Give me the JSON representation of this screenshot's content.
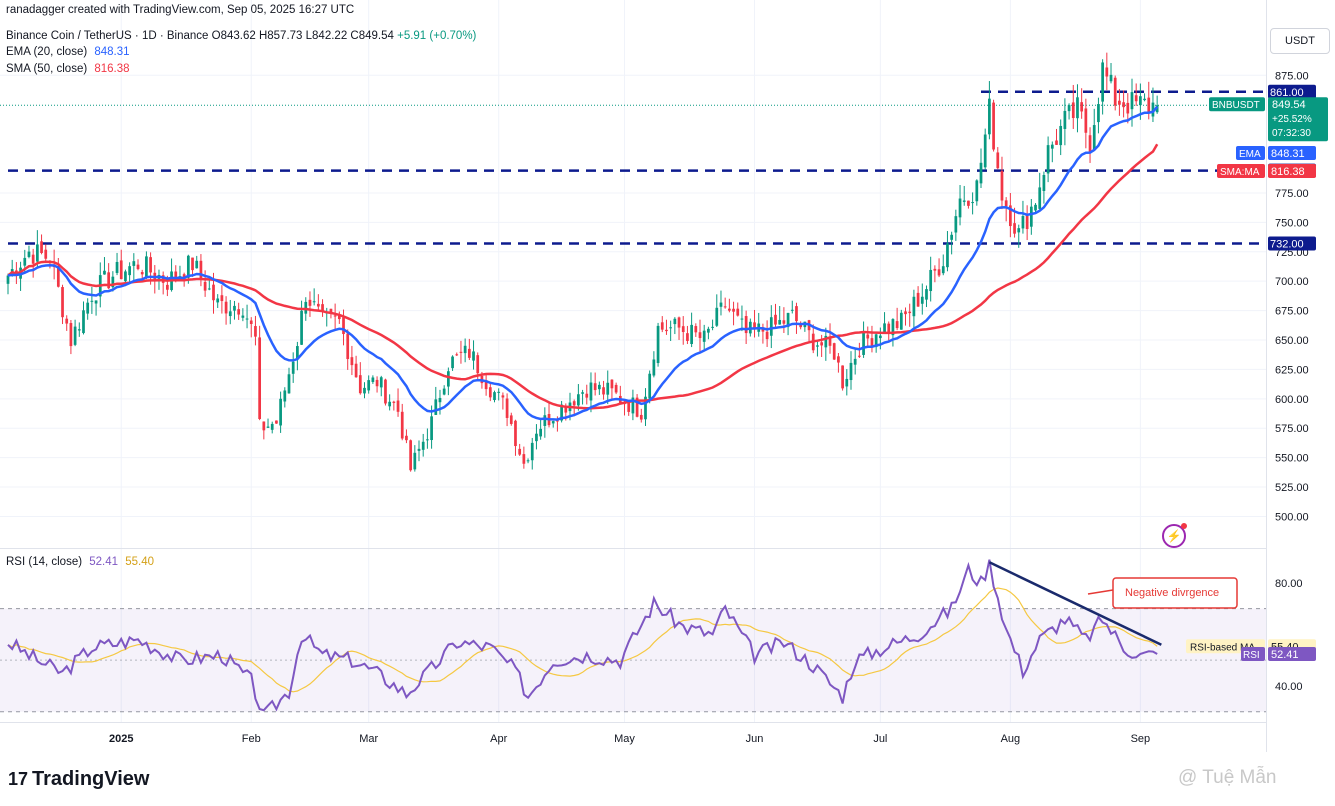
{
  "header": {
    "author_line": "ranadagger created with TradingView.com, Sep 05, 2025 16:27 UTC",
    "symbol_line": "Binance Coin / TetherUS · 1D · Binance",
    "open": "O843.62",
    "high": "H857.73",
    "low": "L842.22",
    "close": "C849.54",
    "change": "+5.91 (+0.70%)",
    "ema_label": "EMA (20, close)",
    "ema_value": "848.31",
    "sma_label": "SMA (50, close)",
    "sma_value": "816.38",
    "rsi_label": "RSI (14, close)",
    "rsi_value": "52.41",
    "rsi_ma_value": "55.40"
  },
  "currency_button": "USDT",
  "footer": {
    "logo": "TradingView",
    "watermark": "@ Tuệ Mẫn"
  },
  "colors": {
    "up": "#089981",
    "down": "#f23645",
    "ema": "#2962ff",
    "sma": "#f23645",
    "rsi": "#7e57c2",
    "rsi_ma": "#f5c842",
    "level": "#0d1b8e"
  },
  "chart_data": [
    {
      "type": "candlestick",
      "title": "Binance Coin / TetherUS · 1D · Binance",
      "ylim": [
        480,
        905
      ],
      "y_ticks": [
        "875.00",
        "775.00",
        "750.00",
        "725.00",
        "700.00",
        "675.00",
        "650.00",
        "625.00",
        "600.00",
        "575.00",
        "550.00",
        "525.00",
        "500.00"
      ],
      "x_ticks": [
        "2025",
        "Feb",
        "Mar",
        "Apr",
        "May",
        "Jun",
        "Jul",
        "Aug",
        "Sep"
      ],
      "x_range": [
        "2024-12-05",
        "2025-09-30"
      ],
      "x_tick_dates": [
        "2025-01-01",
        "2025-02-01",
        "2025-03-01",
        "2025-04-01",
        "2025-05-01",
        "2025-06-01",
        "2025-07-01",
        "2025-08-01",
        "2025-09-01"
      ],
      "close_keypoints": [
        [
          "2024-12-05",
          705
        ],
        [
          "2024-12-10",
          725
        ],
        [
          "2024-12-15",
          720
        ],
        [
          "2024-12-20",
          650
        ],
        [
          "2024-12-25",
          690
        ],
        [
          "2024-12-30",
          705
        ],
        [
          "2025-01-05",
          715
        ],
        [
          "2025-01-12",
          700
        ],
        [
          "2025-01-18",
          715
        ],
        [
          "2025-01-24",
          680
        ],
        [
          "2025-01-30",
          680
        ],
        [
          "2025-02-02",
          650
        ],
        [
          "2025-02-03",
          575
        ],
        [
          "2025-02-07",
          580
        ],
        [
          "2025-02-12",
          650
        ],
        [
          "2025-02-14",
          690
        ],
        [
          "2025-02-18",
          665
        ],
        [
          "2025-02-22",
          665
        ],
        [
          "2025-02-27",
          610
        ],
        [
          "2025-03-03",
          615
        ],
        [
          "2025-03-08",
          590
        ],
        [
          "2025-03-11",
          540
        ],
        [
          "2025-03-16",
          580
        ],
        [
          "2025-03-20",
          630
        ],
        [
          "2025-03-25",
          640
        ],
        [
          "2025-03-30",
          610
        ],
        [
          "2025-04-03",
          590
        ],
        [
          "2025-04-07",
          545
        ],
        [
          "2025-04-10",
          575
        ],
        [
          "2025-04-15",
          590
        ],
        [
          "2025-04-22",
          610
        ],
        [
          "2025-04-28",
          605
        ],
        [
          "2025-05-05",
          590
        ],
        [
          "2025-05-09",
          660
        ],
        [
          "2025-05-14",
          660
        ],
        [
          "2025-05-20",
          650
        ],
        [
          "2025-05-25",
          680
        ],
        [
          "2025-05-30",
          655
        ],
        [
          "2025-06-05",
          660
        ],
        [
          "2025-06-10",
          670
        ],
        [
          "2025-06-15",
          650
        ],
        [
          "2025-06-20",
          640
        ],
        [
          "2025-06-22",
          615
        ],
        [
          "2025-06-26",
          645
        ],
        [
          "2025-07-01",
          660
        ],
        [
          "2025-07-06",
          665
        ],
        [
          "2025-07-12",
          695
        ],
        [
          "2025-07-16",
          720
        ],
        [
          "2025-07-20",
          770
        ],
        [
          "2025-07-24",
          780
        ],
        [
          "2025-07-27",
          845
        ],
        [
          "2025-07-30",
          775
        ],
        [
          "2025-08-03",
          740
        ],
        [
          "2025-08-07",
          770
        ],
        [
          "2025-08-10",
          810
        ],
        [
          "2025-08-14",
          835
        ],
        [
          "2025-08-17",
          845
        ],
        [
          "2025-08-20",
          820
        ],
        [
          "2025-08-23",
          880
        ],
        [
          "2025-08-26",
          855
        ],
        [
          "2025-08-30",
          850
        ],
        [
          "2025-09-05",
          849.54
        ]
      ],
      "series": [
        {
          "name": "EMA (20, close)",
          "last": 848.31
        },
        {
          "name": "SMA (50, close)",
          "last": 816.38
        }
      ],
      "levels": [
        {
          "label": "861.00",
          "value": 861,
          "from": "2025-07-25"
        },
        {
          "label": "794.00",
          "value": 794,
          "from": "2024-12-05"
        },
        {
          "label": "732.00",
          "value": 732,
          "from": "2024-12-05"
        }
      ],
      "price_tags": [
        {
          "label": "BNBUSDT",
          "value": "849.54",
          "change": "+25.52%",
          "countdown": "07:32:30"
        },
        {
          "label": "EMA",
          "value": "848.31"
        },
        {
          "label": "SMA:MA",
          "value": "816.38"
        }
      ]
    },
    {
      "type": "line",
      "title": "RSI (14, close)",
      "ylim": [
        26,
        92
      ],
      "y_ticks": [
        "80.00",
        "40.00"
      ],
      "overbought": 70,
      "oversold": 30,
      "rsi_keypoints": [
        [
          "2024-12-05",
          57
        ],
        [
          "2024-12-12",
          50
        ],
        [
          "2024-12-18",
          45
        ],
        [
          "2024-12-25",
          55
        ],
        [
          "2025-01-05",
          58
        ],
        [
          "2025-01-15",
          50
        ],
        [
          "2025-01-25",
          52
        ],
        [
          "2025-02-01",
          42
        ],
        [
          "2025-02-04",
          28
        ],
        [
          "2025-02-10",
          38
        ],
        [
          "2025-02-13",
          60
        ],
        [
          "2025-02-18",
          52
        ],
        [
          "2025-02-25",
          50
        ],
        [
          "2025-03-03",
          45
        ],
        [
          "2025-03-10",
          37
        ],
        [
          "2025-03-15",
          45
        ],
        [
          "2025-03-22",
          57
        ],
        [
          "2025-03-30",
          55
        ],
        [
          "2025-04-05",
          46
        ],
        [
          "2025-04-08",
          36
        ],
        [
          "2025-04-14",
          50
        ],
        [
          "2025-04-22",
          52
        ],
        [
          "2025-04-30",
          50
        ],
        [
          "2025-05-08",
          72
        ],
        [
          "2025-05-15",
          63
        ],
        [
          "2025-05-22",
          60
        ],
        [
          "2025-05-25",
          70
        ],
        [
          "2025-06-01",
          52
        ],
        [
          "2025-06-08",
          57
        ],
        [
          "2025-06-15",
          48
        ],
        [
          "2025-06-22",
          36
        ],
        [
          "2025-06-25",
          50
        ],
        [
          "2025-07-02",
          55
        ],
        [
          "2025-07-10",
          60
        ],
        [
          "2025-07-18",
          70
        ],
        [
          "2025-07-22",
          85
        ],
        [
          "2025-07-25",
          80
        ],
        [
          "2025-07-27",
          88
        ],
        [
          "2025-07-31",
          62
        ],
        [
          "2025-08-04",
          46
        ],
        [
          "2025-08-08",
          58
        ],
        [
          "2025-08-14",
          66
        ],
        [
          "2025-08-19",
          58
        ],
        [
          "2025-08-23",
          66
        ],
        [
          "2025-08-28",
          55
        ],
        [
          "2025-09-01",
          52
        ],
        [
          "2025-09-05",
          52.41
        ]
      ],
      "series": [
        {
          "name": "RSI",
          "last": 52.41
        },
        {
          "name": "RSI-based MA",
          "last": 55.4
        }
      ],
      "annotation": "Negative divrgence"
    }
  ]
}
